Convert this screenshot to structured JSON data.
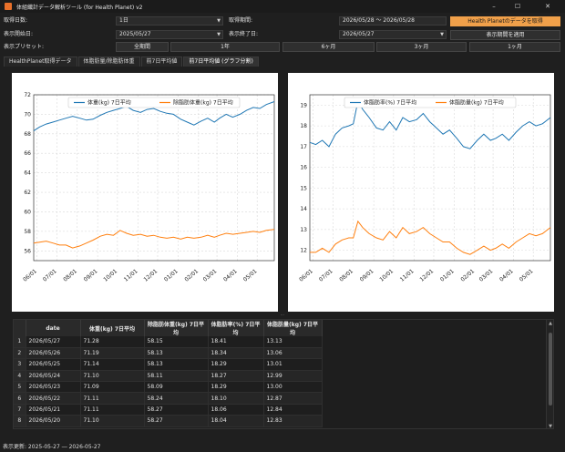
{
  "window": {
    "title": "体組織計データ解析ツール (for Health Planet) v2",
    "min_symbol": "–",
    "max_symbol": "☐",
    "close_symbol": "✕"
  },
  "form": {
    "fetch_days_label": "取得日数:",
    "fetch_days_value": "1日",
    "fetch_period_label": "取得期間:",
    "fetch_period_value": "2026/05/28 ～ 2026/05/28",
    "fetch_button": "Health Planetのデータを取得",
    "display_start_label": "表示開始日:",
    "display_start_value": "2025/05/27",
    "display_end_label": "表示終了日:",
    "display_end_value": "2026/05/27",
    "apply_button": "表示期間を適用",
    "preset_label": "表示プリセット:",
    "presets": [
      "全期間",
      "1年",
      "6ヶ月",
      "3ヶ月",
      "1ヶ月"
    ]
  },
  "tabs": [
    {
      "label": "HealthPlanet取得データ"
    },
    {
      "label": "体脂肪量/除脂肪体重"
    },
    {
      "label": "前7日平均値"
    },
    {
      "label": "前7日平均値 (グラフ分割)"
    }
  ],
  "chart_data": [
    {
      "type": "line",
      "title": "",
      "xlabel": "",
      "ylabel": "",
      "ylim": [
        55,
        72
      ],
      "yticks": [
        56,
        58,
        60,
        62,
        64,
        66,
        68,
        70,
        72
      ],
      "x_tick_labels": [
        "06/01",
        "07/01",
        "08/01",
        "09/01",
        "10/01",
        "11/01",
        "12/01",
        "01/01",
        "02/01",
        "03/01",
        "04/01",
        "05/01"
      ],
      "grid": true,
      "legend_position": "top-center",
      "x_start": "2025-05-27",
      "x_end": "2026-05-27",
      "series": [
        {
          "name": "体重(kg) 7日平均",
          "color": "#1f77b4",
          "points": [
            [
              "2025-05-27",
              68.3
            ],
            [
              "2025-06-05",
              68.7
            ],
            [
              "2025-06-15",
              69.0
            ],
            [
              "2025-06-25",
              69.2
            ],
            [
              "2025-07-05",
              69.4
            ],
            [
              "2025-07-15",
              69.6
            ],
            [
              "2025-07-25",
              69.8
            ],
            [
              "2025-08-05",
              69.6
            ],
            [
              "2025-08-15",
              69.4
            ],
            [
              "2025-08-25",
              69.5
            ],
            [
              "2025-09-05",
              69.9
            ],
            [
              "2025-09-15",
              70.2
            ],
            [
              "2025-09-25",
              70.4
            ],
            [
              "2025-10-05",
              70.6
            ],
            [
              "2025-10-15",
              70.8
            ],
            [
              "2025-10-25",
              70.4
            ],
            [
              "2025-11-05",
              70.2
            ],
            [
              "2025-11-15",
              70.5
            ],
            [
              "2025-11-25",
              70.6
            ],
            [
              "2025-12-05",
              70.3
            ],
            [
              "2025-12-15",
              70.1
            ],
            [
              "2025-12-25",
              70.0
            ],
            [
              "2026-01-05",
              69.5
            ],
            [
              "2026-01-15",
              69.2
            ],
            [
              "2026-01-25",
              68.9
            ],
            [
              "2026-02-05",
              69.3
            ],
            [
              "2026-02-15",
              69.6
            ],
            [
              "2026-02-25",
              69.2
            ],
            [
              "2026-03-05",
              69.6
            ],
            [
              "2026-03-15",
              70.0
            ],
            [
              "2026-03-25",
              69.7
            ],
            [
              "2026-04-05",
              70.0
            ],
            [
              "2026-04-15",
              70.4
            ],
            [
              "2026-04-25",
              70.7
            ],
            [
              "2026-05-05",
              70.6
            ],
            [
              "2026-05-15",
              71.0
            ],
            [
              "2026-05-27",
              71.3
            ]
          ]
        },
        {
          "name": "除脂肪体重(kg) 7日平均",
          "color": "#ff7f0e",
          "points": [
            [
              "2025-05-27",
              56.8
            ],
            [
              "2025-06-05",
              56.9
            ],
            [
              "2025-06-15",
              57.0
            ],
            [
              "2025-06-25",
              56.8
            ],
            [
              "2025-07-05",
              56.6
            ],
            [
              "2025-07-15",
              56.6
            ],
            [
              "2025-07-25",
              56.3
            ],
            [
              "2025-08-05",
              56.5
            ],
            [
              "2025-08-15",
              56.8
            ],
            [
              "2025-08-25",
              57.1
            ],
            [
              "2025-09-05",
              57.5
            ],
            [
              "2025-09-15",
              57.7
            ],
            [
              "2025-09-25",
              57.6
            ],
            [
              "2025-10-05",
              58.1
            ],
            [
              "2025-10-15",
              57.8
            ],
            [
              "2025-10-25",
              57.6
            ],
            [
              "2025-11-05",
              57.7
            ],
            [
              "2025-11-15",
              57.5
            ],
            [
              "2025-11-25",
              57.6
            ],
            [
              "2025-12-05",
              57.4
            ],
            [
              "2025-12-15",
              57.3
            ],
            [
              "2025-12-25",
              57.4
            ],
            [
              "2026-01-05",
              57.2
            ],
            [
              "2026-01-15",
              57.4
            ],
            [
              "2026-01-25",
              57.3
            ],
            [
              "2026-02-05",
              57.4
            ],
            [
              "2026-02-15",
              57.6
            ],
            [
              "2026-02-25",
              57.4
            ],
            [
              "2026-03-05",
              57.6
            ],
            [
              "2026-03-15",
              57.8
            ],
            [
              "2026-03-25",
              57.7
            ],
            [
              "2026-04-05",
              57.8
            ],
            [
              "2026-04-15",
              57.9
            ],
            [
              "2026-04-25",
              58.0
            ],
            [
              "2026-05-05",
              57.9
            ],
            [
              "2026-05-15",
              58.1
            ],
            [
              "2026-05-27",
              58.2
            ]
          ]
        }
      ]
    },
    {
      "type": "line",
      "title": "",
      "xlabel": "",
      "ylabel": "",
      "ylim": [
        11.5,
        19.5
      ],
      "yticks": [
        12,
        13,
        14,
        15,
        16,
        17,
        18,
        19
      ],
      "x_tick_labels": [
        "06/01",
        "07/01",
        "08/01",
        "09/01",
        "10/01",
        "11/01",
        "12/01",
        "01/01",
        "02/01",
        "03/01",
        "04/01",
        "05/01"
      ],
      "grid": true,
      "legend_position": "top-center",
      "x_start": "2025-05-27",
      "x_end": "2026-05-27",
      "series": [
        {
          "name": "体脂肪率(%) 7日平均",
          "color": "#1f77b4",
          "points": [
            [
              "2025-05-27",
              17.2
            ],
            [
              "2025-06-05",
              17.1
            ],
            [
              "2025-06-15",
              17.3
            ],
            [
              "2025-06-25",
              17.0
            ],
            [
              "2025-07-05",
              17.6
            ],
            [
              "2025-07-15",
              17.9
            ],
            [
              "2025-07-25",
              18.0
            ],
            [
              "2025-08-01",
              18.1
            ],
            [
              "2025-08-08",
              19.2
            ],
            [
              "2025-08-15",
              18.8
            ],
            [
              "2025-08-25",
              18.4
            ],
            [
              "2025-09-05",
              17.9
            ],
            [
              "2025-09-15",
              17.8
            ],
            [
              "2025-09-25",
              18.2
            ],
            [
              "2025-10-05",
              17.8
            ],
            [
              "2025-10-15",
              18.4
            ],
            [
              "2025-10-25",
              18.2
            ],
            [
              "2025-11-05",
              18.3
            ],
            [
              "2025-11-15",
              18.6
            ],
            [
              "2025-11-25",
              18.2
            ],
            [
              "2025-12-05",
              17.9
            ],
            [
              "2025-12-15",
              17.6
            ],
            [
              "2025-12-25",
              17.8
            ],
            [
              "2026-01-05",
              17.4
            ],
            [
              "2026-01-15",
              17.0
            ],
            [
              "2026-01-25",
              16.9
            ],
            [
              "2026-02-05",
              17.3
            ],
            [
              "2026-02-15",
              17.6
            ],
            [
              "2026-02-25",
              17.3
            ],
            [
              "2026-03-05",
              17.4
            ],
            [
              "2026-03-15",
              17.6
            ],
            [
              "2026-03-25",
              17.3
            ],
            [
              "2026-04-05",
              17.7
            ],
            [
              "2026-04-15",
              18.0
            ],
            [
              "2026-04-25",
              18.2
            ],
            [
              "2026-05-05",
              18.0
            ],
            [
              "2026-05-15",
              18.1
            ],
            [
              "2026-05-27",
              18.4
            ]
          ]
        },
        {
          "name": "体脂肪量(kg) 7日平均",
          "color": "#ff7f0e",
          "points": [
            [
              "2025-05-27",
              11.9
            ],
            [
              "2025-06-05",
              11.9
            ],
            [
              "2025-06-15",
              12.1
            ],
            [
              "2025-06-25",
              11.9
            ],
            [
              "2025-07-05",
              12.3
            ],
            [
              "2025-07-15",
              12.5
            ],
            [
              "2025-07-25",
              12.6
            ],
            [
              "2025-08-01",
              12.6
            ],
            [
              "2025-08-08",
              13.4
            ],
            [
              "2025-08-15",
              13.1
            ],
            [
              "2025-08-25",
              12.8
            ],
            [
              "2025-09-05",
              12.6
            ],
            [
              "2025-09-15",
              12.5
            ],
            [
              "2025-09-25",
              12.9
            ],
            [
              "2025-10-05",
              12.6
            ],
            [
              "2025-10-15",
              13.1
            ],
            [
              "2025-10-25",
              12.8
            ],
            [
              "2025-11-05",
              12.9
            ],
            [
              "2025-11-15",
              13.1
            ],
            [
              "2025-11-25",
              12.8
            ],
            [
              "2025-12-05",
              12.6
            ],
            [
              "2025-12-15",
              12.4
            ],
            [
              "2025-12-25",
              12.4
            ],
            [
              "2026-01-05",
              12.1
            ],
            [
              "2026-01-15",
              11.9
            ],
            [
              "2026-01-25",
              11.8
            ],
            [
              "2026-02-05",
              12.0
            ],
            [
              "2026-02-15",
              12.2
            ],
            [
              "2026-02-25",
              12.0
            ],
            [
              "2026-03-05",
              12.1
            ],
            [
              "2026-03-15",
              12.3
            ],
            [
              "2026-03-25",
              12.1
            ],
            [
              "2026-04-05",
              12.4
            ],
            [
              "2026-04-15",
              12.6
            ],
            [
              "2026-04-25",
              12.8
            ],
            [
              "2026-05-05",
              12.7
            ],
            [
              "2026-05-15",
              12.8
            ],
            [
              "2026-05-27",
              13.1
            ]
          ]
        }
      ]
    }
  ],
  "table": {
    "columns": [
      "date",
      "体重(kg) 7日平均",
      "除脂肪体重(kg) 7日平均",
      "体脂肪率(%) 7日平均",
      "体脂肪量(kg) 7日平均"
    ],
    "rows": [
      {
        "n": "1",
        "cells": [
          "2026/05/27",
          "71.28",
          "58.15",
          "18.41",
          "13.13"
        ]
      },
      {
        "n": "2",
        "cells": [
          "2026/05/26",
          "71.19",
          "58.13",
          "18.34",
          "13.06"
        ]
      },
      {
        "n": "3",
        "cells": [
          "2026/05/25",
          "71.14",
          "58.13",
          "18.29",
          "13.01"
        ]
      },
      {
        "n": "4",
        "cells": [
          "2026/05/24",
          "71.10",
          "58.11",
          "18.27",
          "12.99"
        ]
      },
      {
        "n": "5",
        "cells": [
          "2026/05/23",
          "71.09",
          "58.09",
          "18.29",
          "13.00"
        ]
      },
      {
        "n": "6",
        "cells": [
          "2026/05/22",
          "71.11",
          "58.24",
          "18.10",
          "12.87"
        ]
      },
      {
        "n": "7",
        "cells": [
          "2026/05/21",
          "71.11",
          "58.27",
          "18.06",
          "12.84"
        ]
      },
      {
        "n": "8",
        "cells": [
          "2026/05/20",
          "71.10",
          "58.27",
          "18.04",
          "12.83"
        ]
      }
    ]
  },
  "status": {
    "text": "表示更新: 2025-05-27 ― 2026-05-27"
  }
}
